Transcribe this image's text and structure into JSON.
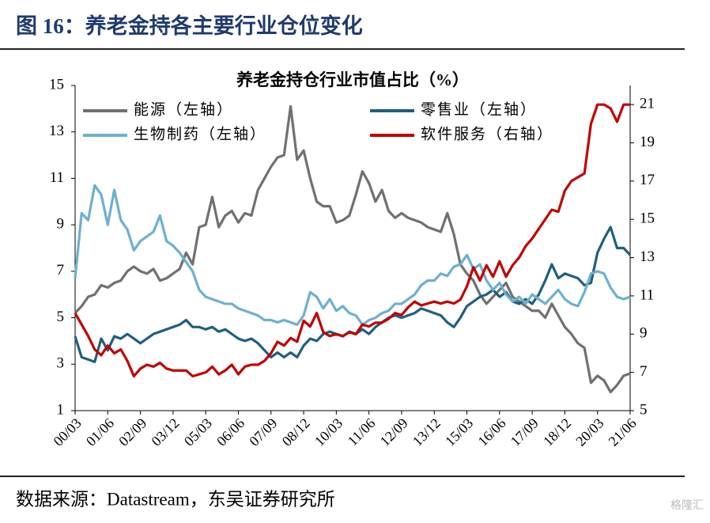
{
  "header": {
    "title": "图 16：养老金持各主要行业仓位变化"
  },
  "chart_data": {
    "type": "line",
    "title": "养老金持仓行业市值占比（%）",
    "categories": [
      "00/03",
      null,
      null,
      null,
      null,
      "01/06",
      null,
      null,
      null,
      null,
      "02/09",
      null,
      null,
      null,
      null,
      "03/12",
      null,
      null,
      null,
      null,
      "05/03",
      null,
      null,
      null,
      null,
      "06/06",
      null,
      null,
      null,
      null,
      "07/09",
      null,
      null,
      null,
      null,
      "08/12",
      null,
      null,
      null,
      null,
      "10/03",
      null,
      null,
      null,
      null,
      "11/06",
      null,
      null,
      null,
      null,
      "12/09",
      null,
      null,
      null,
      null,
      "13/12",
      null,
      null,
      null,
      null,
      "15/03",
      null,
      null,
      null,
      null,
      "16/06",
      null,
      null,
      null,
      null,
      "17/09",
      null,
      null,
      null,
      null,
      "18/12",
      null,
      null,
      null,
      null,
      "20/03",
      null,
      null,
      null,
      null,
      "21/06"
    ],
    "series": [
      {
        "name": "能源（左轴）",
        "color": "#707070",
        "axis": "y",
        "values": [
          5.2,
          5.5,
          5.9,
          6.0,
          6.4,
          6.3,
          6.5,
          6.6,
          7.0,
          7.2,
          7.0,
          6.9,
          7.1,
          6.6,
          6.7,
          6.9,
          7.1,
          7.8,
          7.3,
          8.9,
          9.0,
          10.2,
          8.9,
          9.4,
          9.6,
          9.1,
          9.5,
          9.4,
          10.5,
          11.0,
          11.5,
          11.9,
          12.0,
          14.1,
          11.8,
          12.2,
          11.0,
          10.0,
          9.8,
          9.8,
          9.1,
          9.2,
          9.4,
          10.3,
          11.3,
          10.8,
          10.0,
          10.5,
          9.6,
          9.3,
          9.5,
          9.3,
          9.2,
          9.1,
          8.9,
          8.8,
          8.7,
          9.5,
          8.6,
          7.3,
          6.9,
          6.6,
          6.0,
          5.6,
          5.9,
          6.2,
          6.5,
          5.9,
          5.7,
          5.5,
          5.3,
          5.3,
          5.0,
          5.6,
          5.1,
          4.6,
          4.3,
          3.9,
          3.7,
          2.2,
          2.5,
          2.3,
          1.8,
          2.1,
          2.5,
          2.6
        ]
      },
      {
        "name": "零售业（左轴）",
        "color": "#1f5f80",
        "axis": "y",
        "values": [
          4.2,
          3.3,
          3.2,
          3.1,
          4.1,
          3.6,
          4.2,
          4.1,
          4.3,
          4.1,
          3.9,
          4.1,
          4.3,
          4.4,
          4.5,
          4.6,
          4.7,
          4.9,
          4.6,
          4.6,
          4.5,
          4.6,
          4.4,
          4.5,
          4.3,
          4.1,
          4.0,
          4.1,
          3.9,
          3.6,
          3.3,
          3.5,
          3.3,
          3.5,
          3.3,
          3.8,
          4.1,
          4.0,
          4.3,
          4.4,
          4.3,
          4.2,
          4.4,
          4.3,
          4.5,
          4.3,
          4.6,
          4.8,
          5.0,
          5.1,
          5.0,
          5.1,
          5.2,
          5.4,
          5.3,
          5.2,
          5.1,
          4.8,
          4.6,
          5.0,
          5.5,
          5.7,
          5.9,
          6.0,
          6.2,
          5.9,
          6.1,
          5.7,
          5.6,
          5.8,
          5.6,
          6.0,
          6.6,
          7.3,
          6.7,
          6.9,
          6.8,
          6.7,
          6.4,
          6.5,
          7.8,
          8.4,
          8.9,
          8.0,
          8.0,
          7.7
        ]
      },
      {
        "name": "生物制药（左轴）",
        "color": "#6db0d0",
        "axis": "y",
        "values": [
          6.7,
          9.5,
          9.2,
          10.7,
          10.3,
          9.0,
          10.5,
          9.2,
          8.8,
          7.9,
          8.3,
          8.5,
          8.7,
          9.4,
          8.3,
          8.1,
          7.8,
          7.4,
          7.0,
          6.2,
          5.9,
          5.8,
          5.7,
          5.6,
          5.6,
          5.4,
          5.3,
          5.2,
          5.1,
          4.9,
          4.9,
          4.8,
          4.9,
          4.8,
          4.7,
          5.1,
          6.1,
          5.9,
          5.4,
          5.8,
          5.3,
          5.5,
          5.2,
          5.1,
          4.7,
          4.9,
          5.0,
          5.2,
          5.3,
          5.6,
          5.6,
          5.8,
          6.0,
          6.4,
          6.6,
          6.6,
          6.9,
          6.8,
          7.2,
          7.3,
          7.7,
          7.1,
          7.3,
          6.6,
          6.2,
          6.5,
          6.0,
          5.7,
          5.9,
          5.6,
          6.0,
          5.8,
          5.6,
          5.9,
          6.2,
          5.8,
          5.6,
          5.5,
          6.1,
          6.9,
          7.0,
          6.9,
          6.3,
          5.9,
          5.8,
          5.9
        ]
      },
      {
        "name": "软件服务（右轴）",
        "color": "#c00000",
        "axis": "y2",
        "values": [
          10.1,
          9.5,
          8.9,
          8.2,
          7.9,
          8.4,
          8.0,
          8.2,
          7.6,
          6.8,
          7.2,
          7.4,
          7.3,
          7.5,
          7.2,
          7.1,
          7.1,
          7.1,
          6.8,
          6.9,
          7.0,
          7.3,
          6.9,
          7.1,
          7.4,
          6.9,
          7.3,
          7.4,
          7.4,
          7.6,
          8.0,
          8.6,
          8.4,
          8.8,
          8.6,
          9.7,
          9.4,
          10.1,
          9.1,
          8.9,
          9.0,
          8.9,
          9.1,
          9.0,
          9.5,
          9.4,
          9.6,
          9.6,
          9.8,
          10.1,
          10.0,
          10.4,
          10.7,
          10.5,
          10.6,
          10.7,
          10.6,
          10.7,
          10.6,
          10.8,
          11.5,
          12.5,
          11.8,
          12.6,
          12.0,
          12.8,
          12.0,
          12.6,
          13.0,
          13.6,
          14.0,
          14.5,
          15.0,
          15.5,
          15.4,
          16.5,
          17.0,
          17.2,
          17.4,
          20.0,
          21.0,
          21.0,
          20.8,
          20.1,
          21.0,
          21.0
        ]
      }
    ],
    "ylim": [
      1,
      15
    ],
    "yticks": [
      1,
      3,
      5,
      7,
      9,
      11,
      13,
      15
    ],
    "y2lim": [
      5,
      22
    ],
    "y2ticks": [
      5,
      7,
      9,
      11,
      13,
      15,
      17,
      19,
      21
    ],
    "legend": "top"
  },
  "source": "数据来源：Datastream，东吴证券研究所",
  "watermark": "格隆汇"
}
